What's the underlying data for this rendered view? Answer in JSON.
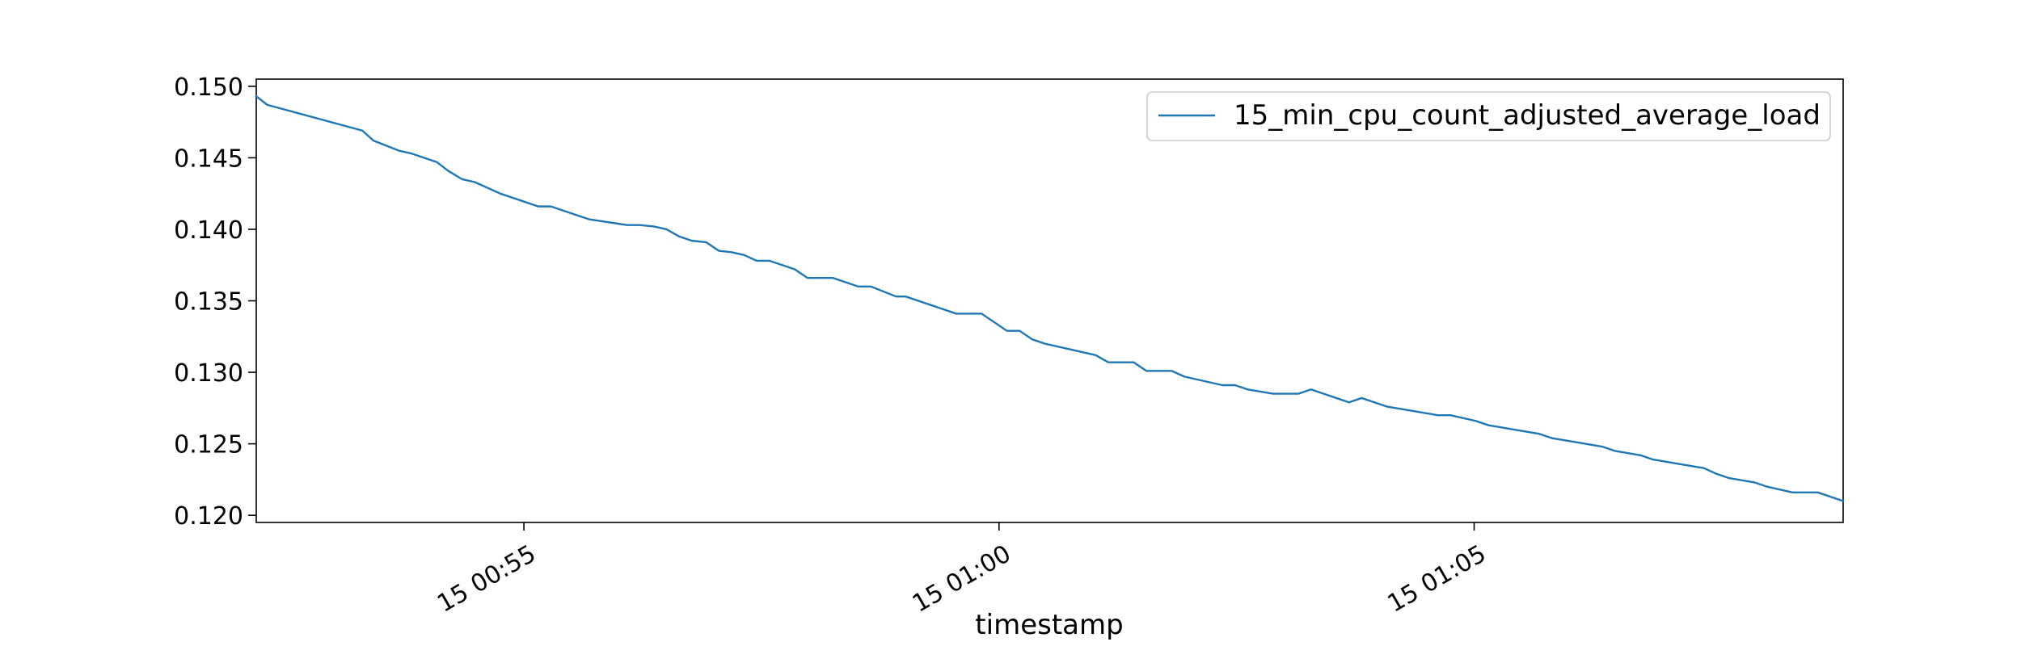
{
  "chart_data": {
    "type": "line",
    "title": "",
    "xlabel": "timestamp",
    "ylabel": "",
    "xlim": [
      "15 00:52:11",
      "15 01:08:53"
    ],
    "ylim": [
      0.1195,
      0.1505
    ],
    "x_ticks": [
      {
        "value": "15 00:55:00",
        "label": "15 00:55"
      },
      {
        "value": "15 01:00:00",
        "label": "15 01:00"
      },
      {
        "value": "15 01:05:00",
        "label": "15 01:05"
      }
    ],
    "y_ticks": [
      0.12,
      0.125,
      0.13,
      0.135,
      0.14,
      0.145,
      0.15
    ],
    "y_tick_labels": [
      "0.120",
      "0.125",
      "0.130",
      "0.135",
      "0.140",
      "0.145",
      "0.150"
    ],
    "grid": false,
    "legend_position": "top-right",
    "series": [
      {
        "name": "15_min_cpu_count_adjusted_average_load",
        "color": "#1f77b4",
        "x": [
          "15 00:52:11",
          "15 00:52:18",
          "15 00:53:18",
          "15 00:53:25",
          "15 00:53:41",
          "15 00:53:49",
          "15 00:54:05",
          "15 00:54:12",
          "15 00:54:21",
          "15 00:54:29",
          "15 00:54:45",
          "15 00:54:53",
          "15 00:55:09",
          "15 00:55:17",
          "15 00:55:41",
          "15 00:56:05",
          "15 00:56:13",
          "15 00:56:22",
          "15 00:56:30",
          "15 00:56:38",
          "15 00:56:46",
          "15 00:56:55",
          "15 00:57:03",
          "15 00:57:11",
          "15 00:57:19",
          "15 00:57:27",
          "15 00:57:35",
          "15 00:57:51",
          "15 00:57:59",
          "15 00:58:15",
          "15 00:58:31",
          "15 00:58:39",
          "15 00:58:55",
          "15 00:59:01",
          "15 00:59:17",
          "15 00:59:33",
          "15 00:59:49",
          "15 00:59:57",
          "15 01:00:05",
          "15 01:00:13",
          "15 01:00:21",
          "15 01:00:29",
          "15 01:00:45",
          "15 01:01:01",
          "15 01:01:09",
          "15 01:01:25",
          "15 01:01:33",
          "15 01:01:49",
          "15 01:01:57",
          "15 01:02:21",
          "15 01:02:29",
          "15 01:02:37",
          "15 01:02:53",
          "15 01:03:09",
          "15 01:03:17",
          "15 01:03:25",
          "15 01:03:33",
          "15 01:03:41",
          "15 01:03:49",
          "15 01:03:57",
          "15 01:04:05",
          "15 01:04:21",
          "15 01:04:37",
          "15 01:04:45",
          "15 01:05:01",
          "15 01:05:09",
          "15 01:05:25",
          "15 01:05:41",
          "15 01:05:49",
          "15 01:06:05",
          "15 01:06:21",
          "15 01:06:29",
          "15 01:06:45",
          "15 01:06:53",
          "15 01:07:09",
          "15 01:07:25",
          "15 01:07:33",
          "15 01:07:41",
          "15 01:07:57",
          "15 01:08:05",
          "15 01:08:21",
          "15 01:08:37",
          "15 01:08:53"
        ],
        "y": [
          0.1493,
          0.1487,
          0.1469,
          0.1462,
          0.1455,
          0.1453,
          0.1447,
          0.1441,
          0.1435,
          0.1433,
          0.1425,
          0.1422,
          0.1416,
          0.1416,
          0.1407,
          0.1403,
          0.1403,
          0.1402,
          0.14,
          0.1395,
          0.1392,
          0.1391,
          0.1385,
          0.1384,
          0.1382,
          0.1378,
          0.1378,
          0.1372,
          0.1366,
          0.1366,
          0.136,
          0.136,
          0.1353,
          0.1353,
          0.1347,
          0.1341,
          0.1341,
          0.1335,
          0.1329,
          0.1329,
          0.1323,
          0.132,
          0.1316,
          0.1312,
          0.1307,
          0.1307,
          0.1301,
          0.1301,
          0.1297,
          0.1291,
          0.1291,
          0.1288,
          0.1285,
          0.1285,
          0.1288,
          0.1285,
          0.1282,
          0.1279,
          0.1282,
          0.1279,
          0.1276,
          0.1273,
          0.127,
          0.127,
          0.1266,
          0.1263,
          0.126,
          0.1257,
          0.1254,
          0.1251,
          0.1248,
          0.1245,
          0.1242,
          0.1239,
          0.1236,
          0.1233,
          0.1229,
          0.1226,
          0.1223,
          0.122,
          0.1216,
          0.1216,
          0.121
        ]
      }
    ]
  }
}
